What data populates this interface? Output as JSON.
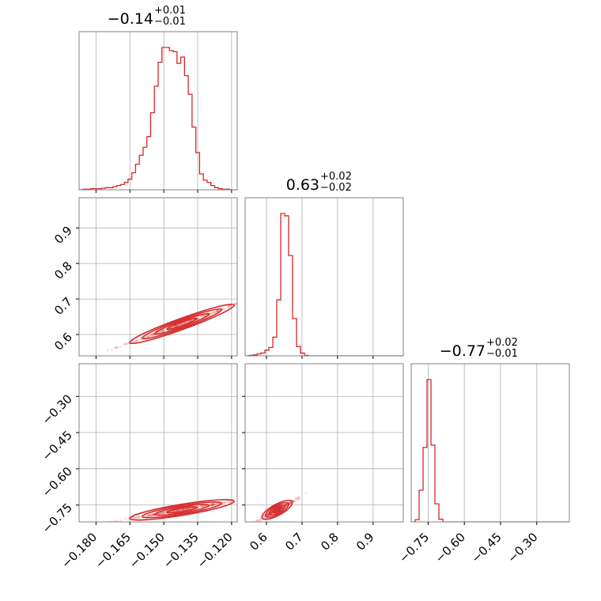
{
  "chart_data": {
    "type": "corner",
    "grid": true,
    "color": "#d62728",
    "parameters": [
      {
        "title": {
          "median": "−0.14",
          "plus": "+0.01",
          "minus": "−0.01"
        },
        "range": [
          -0.1875,
          -0.1175
        ],
        "ticks": [
          {
            "v": -0.18,
            "label": "−0.180"
          },
          {
            "v": -0.165,
            "label": "−0.165"
          },
          {
            "v": -0.15,
            "label": "−0.150"
          },
          {
            "v": -0.135,
            "label": "−0.135"
          },
          {
            "v": -0.12,
            "label": "−0.120"
          }
        ],
        "hist": {
          "edges_range": [
            -0.1875,
            -0.1175
          ],
          "counts": [
            0,
            1,
            1,
            2,
            2,
            2,
            3,
            4,
            4,
            6,
            8,
            10,
            14,
            20,
            32,
            48,
            65,
            80,
            100,
            145,
            195,
            240,
            268,
            268,
            262,
            260,
            238,
            250,
            215,
            180,
            118,
            70,
            30,
            18,
            14,
            8,
            4,
            2,
            1,
            1,
            0,
            0
          ]
        }
      },
      {
        "title": {
          "median": "0.63",
          "plus": "+0.02",
          "minus": "−0.02"
        },
        "range": [
          0.54,
          0.985
        ],
        "ticks": [
          {
            "v": 0.6,
            "label": "0.6"
          },
          {
            "v": 0.7,
            "label": "0.7"
          },
          {
            "v": 0.8,
            "label": "0.8"
          },
          {
            "v": 0.9,
            "label": "0.9"
          }
        ],
        "hist": {
          "edges_range": [
            0.54,
            0.985
          ],
          "counts": [
            0,
            1,
            2,
            4,
            6,
            12,
            18,
            40,
            120,
            305,
            300,
            215,
            80,
            20,
            6,
            1,
            0,
            0,
            0,
            0,
            0,
            0,
            0,
            0,
            0,
            0,
            0,
            0,
            0,
            0,
            0,
            0,
            0,
            0,
            0,
            0,
            0,
            0,
            0,
            0
          ]
        }
      },
      {
        "title": {
          "median": "−0.77",
          "plus": "+0.02",
          "minus": "−0.01"
        },
        "range": [
          -0.82,
          -0.165
        ],
        "ticks": [
          {
            "v": -0.75,
            "label": "−0.75"
          },
          {
            "v": -0.6,
            "label": "−0.60"
          },
          {
            "v": -0.45,
            "label": "−0.45"
          },
          {
            "v": -0.3,
            "label": "−0.30"
          }
        ],
        "hist": {
          "edges_range": [
            -0.82,
            -0.165
          ],
          "counts": [
            0,
            5,
            70,
            165,
            315,
            170,
            40,
            6,
            0,
            0,
            0,
            0,
            0,
            0,
            0,
            0,
            0,
            0,
            0,
            0,
            0,
            0,
            0,
            0,
            0,
            0,
            0,
            0,
            0,
            0,
            0,
            0,
            0,
            0,
            0,
            0,
            0,
            0,
            0,
            0
          ]
        }
      }
    ],
    "y_axis_ranges": {
      "row1": [
        0.54,
        0.985
      ],
      "row2": [
        -0.82,
        -0.165
      ]
    }
  }
}
